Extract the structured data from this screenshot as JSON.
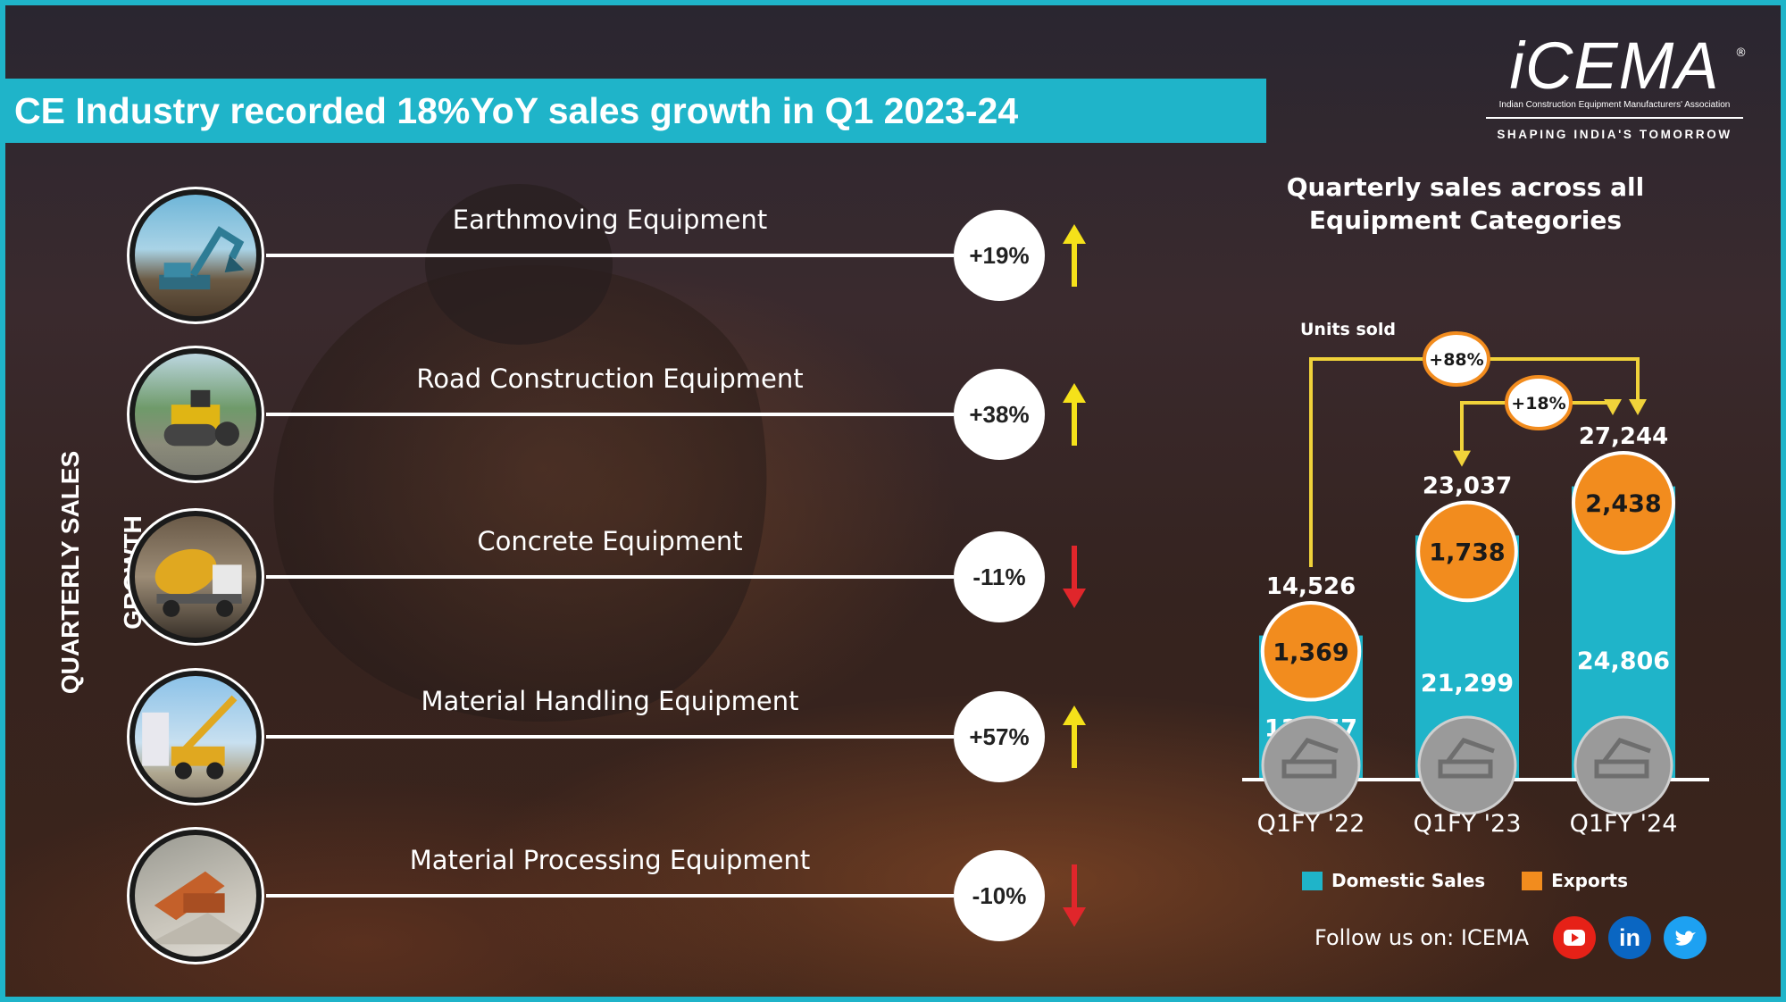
{
  "header": {
    "title": "CE Industry recorded 18%YoY sales growth in Q1 2023-24"
  },
  "logo": {
    "wordmark": "iCEMA",
    "registered": "®",
    "full_name": "Indian Construction Equipment Manufacturers' Association",
    "tagline": "SHAPING INDIA'S TOMORROW"
  },
  "side_label": "QUARTERLY SALES GROWTH",
  "categories": [
    {
      "label": "Earthmoving Equipment",
      "growth": "+19%",
      "direction": "up",
      "icon": "excavator-photo"
    },
    {
      "label": "Road Construction Equipment",
      "growth": "+38%",
      "direction": "up",
      "icon": "road-roller-photo"
    },
    {
      "label": "Concrete Equipment",
      "growth": "-11%",
      "direction": "down",
      "icon": "concrete-mixer-photo"
    },
    {
      "label": "Material Handling Equipment",
      "growth": "+57%",
      "direction": "up",
      "icon": "crane-photo"
    },
    {
      "label": "Material Processing Equipment",
      "growth": "-10%",
      "direction": "down",
      "icon": "crusher-photo"
    }
  ],
  "colors": {
    "accent": "#1fb4c9",
    "domestic": "#1fb4c9",
    "exports": "#f28c1e",
    "up_arrow": "#f5e11a",
    "down_arrow": "#e0262b",
    "connector": "#f0d23a"
  },
  "chart_data": {
    "type": "bar",
    "title": "Quarterly sales across all Equipment Categories",
    "unit_label": "Units sold",
    "categories": [
      "Q1FY '22",
      "Q1FY '23",
      "Q1FY '24"
    ],
    "series": [
      {
        "name": "Domestic Sales",
        "values": [
          13157,
          21299,
          24806
        ]
      },
      {
        "name": "Exports",
        "values": [
          1369,
          1738,
          2438
        ]
      }
    ],
    "totals": [
      14526,
      23037,
      27244
    ],
    "value_labels": {
      "domestic": [
        "13,157",
        "21,299",
        "24,806"
      ],
      "exports": [
        "1,369",
        "1,738",
        "2,438"
      ],
      "totals": [
        "14,526",
        "23,037",
        "27,244"
      ]
    },
    "growth_annotations": [
      {
        "from": "Q1FY '22",
        "to": "Q1FY '24",
        "label": "+88%"
      },
      {
        "from": "Q1FY '23",
        "to": "Q1FY '24",
        "label": "+18%"
      }
    ],
    "bar_icons": [
      "dump-truck-icon",
      "backhoe-loader-icon",
      "excavator-icon"
    ],
    "legend": [
      "Domestic Sales",
      "Exports"
    ],
    "legend_position": "bottom"
  },
  "footer": {
    "follow_text": "Follow us on: ICEMA",
    "social": [
      "youtube-icon",
      "linkedin-icon",
      "twitter-icon"
    ],
    "linkedin_text": "in"
  }
}
